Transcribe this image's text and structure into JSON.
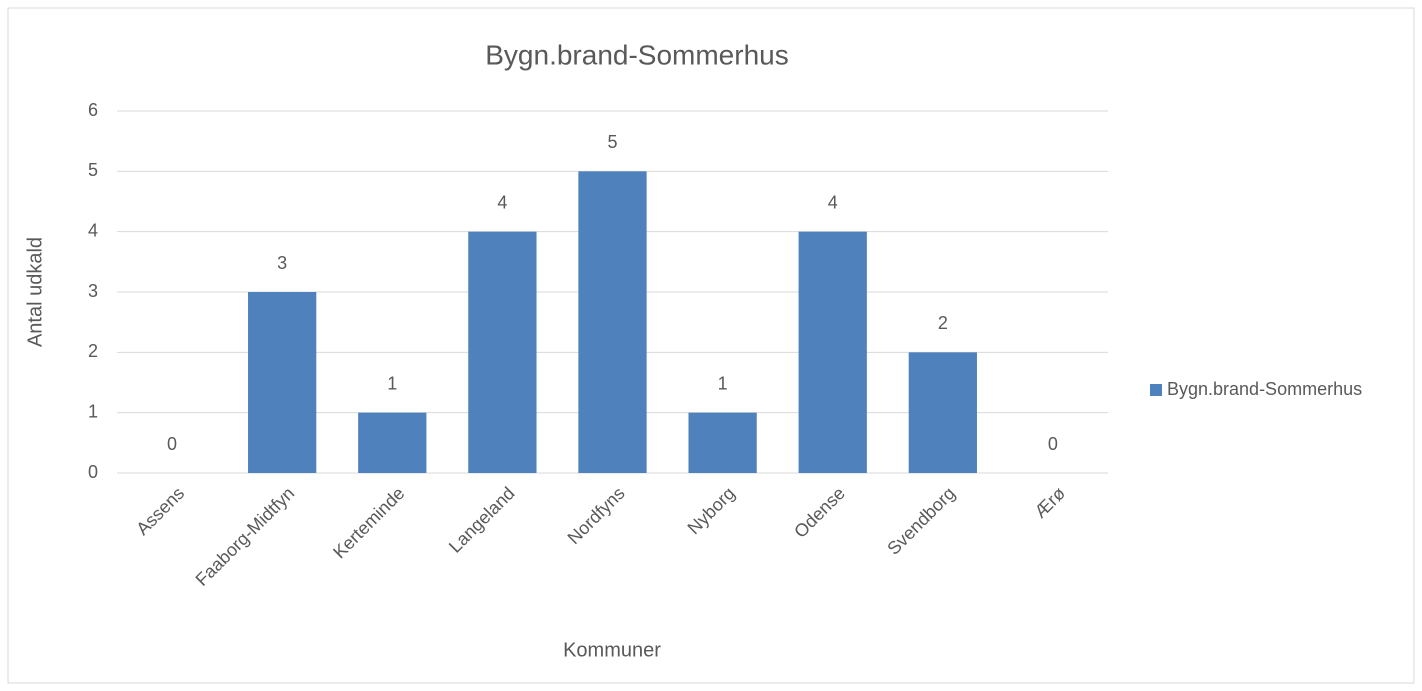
{
  "chart_data": {
    "type": "bar",
    "title": "Bygn.brand-Sommerhus",
    "x_label": "Kommuner",
    "y_label": "Antal udkald",
    "categories": [
      "Assens",
      "Faaborg-Midtfyn",
      "Kerteminde",
      "Langeland",
      "Nordfyns",
      "Nyborg",
      "Odense",
      "Svendborg",
      "Ærø"
    ],
    "series": [
      {
        "name": "Bygn.brand-Sommerhus",
        "color": "#4f81bd",
        "values": [
          0,
          3,
          1,
          4,
          5,
          1,
          4,
          2,
          0
        ]
      }
    ],
    "ylim": [
      0,
      6
    ],
    "yticks": [
      0,
      1,
      2,
      3,
      4,
      5,
      6
    ],
    "grid": true,
    "legend": "right"
  }
}
